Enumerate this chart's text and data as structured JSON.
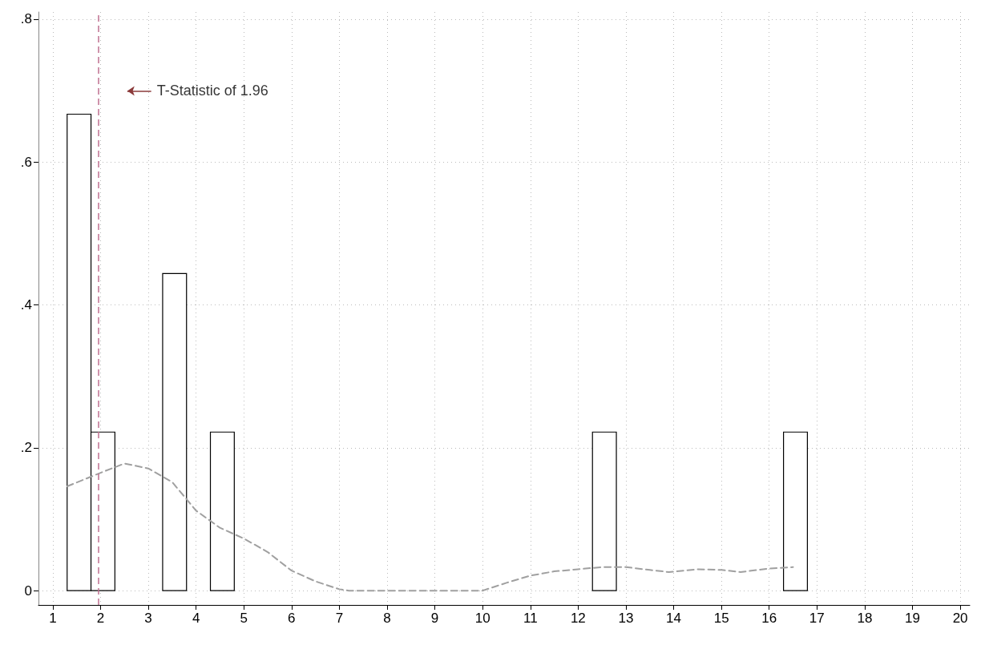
{
  "chart_data": {
    "type": "histogram",
    "series": [
      {
        "color": "#000000",
        "bins": [
          1.3,
          1.8,
          2.3,
          2.8,
          3.3,
          3.8,
          4.3,
          4.8,
          5.3,
          5.8,
          6.3,
          6.8,
          7.3,
          7.8,
          8.3,
          8.8,
          9.3,
          9.8,
          10.3,
          10.8,
          11.3,
          11.8,
          12.3,
          12.8,
          13.3,
          13.8,
          14.3,
          14.8,
          15.3,
          15.8,
          16.3,
          16.8
        ],
        "values": [
          0.667,
          0.222,
          0,
          0,
          0.444,
          0,
          0.222,
          0,
          0,
          0,
          0,
          0,
          0,
          0,
          0,
          0,
          0,
          0,
          0,
          0,
          0,
          0,
          0.222,
          0,
          0,
          0,
          0,
          0,
          0,
          0,
          0.222
        ]
      },
      {
        "type": "line",
        "color": "#a0a0a0",
        "line_style": "dashed",
        "marker": "none",
        "x": [
          1.3,
          2,
          2.5,
          3,
          3.5,
          4,
          4.5,
          5,
          5.5,
          6,
          6.5,
          7,
          7.2,
          8,
          9,
          10,
          10.5,
          11,
          11.5,
          12,
          12.5,
          13,
          13.5,
          13.9,
          14.5,
          15,
          15.4,
          16,
          16.5
        ],
        "values": [
          0.146,
          0.165,
          0.178,
          0.171,
          0.152,
          0.112,
          0.088,
          0.073,
          0.054,
          0.028,
          0.013,
          0.002,
          0,
          0,
          0,
          0,
          0.011,
          0.021,
          0.027,
          0.03,
          0.033,
          0.033,
          0.029,
          0.026,
          0.03,
          0.029,
          0.026,
          0.031,
          0.033
        ]
      }
    ],
    "xlim": [
      0.7,
      20.2
    ],
    "xticks": [
      1,
      2,
      3,
      4,
      5,
      6,
      7,
      8,
      9,
      10,
      11,
      12,
      13,
      14,
      15,
      16,
      17,
      18,
      19,
      20
    ],
    "ylim": [
      -0.02,
      0.81
    ],
    "yticks": [
      0,
      {
        "value": 0.2,
        "label": ".2"
      },
      {
        "value": 0.4,
        "label": ".4"
      },
      {
        "value": 0.6,
        "label": ".6"
      },
      {
        "value": 0.8,
        "label": ".8"
      }
    ],
    "grid": true,
    "ref_lines": [
      {
        "axis": "x",
        "value": 1.96,
        "color": "#c07090",
        "line_style": "dashed"
      }
    ],
    "annotations": [
      "T-Statistic of 1.96"
    ]
  }
}
